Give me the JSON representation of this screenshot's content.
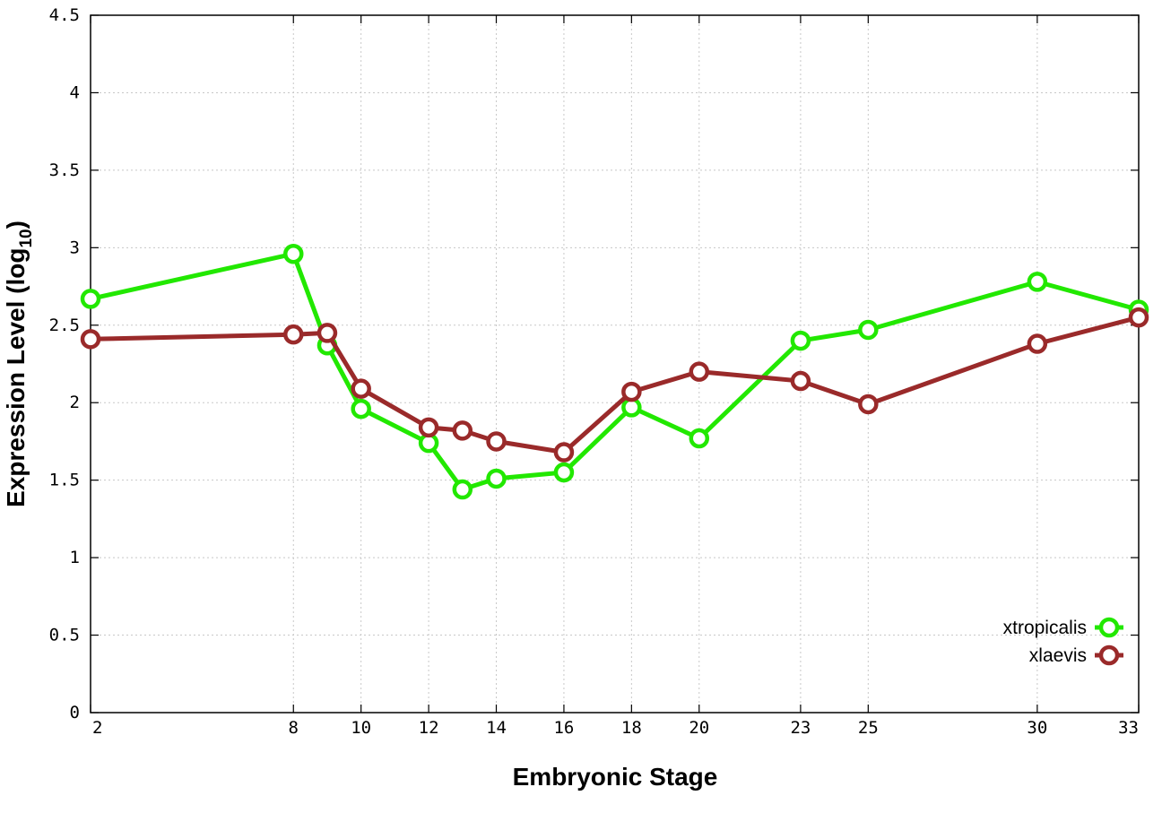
{
  "chart_data": {
    "type": "line",
    "xlabel": "Embryonic Stage",
    "ylabel_main": "Expression Level (log",
    "ylabel_sub": "10",
    "ylabel_close": ")",
    "xlim": [
      2,
      33
    ],
    "ylim": [
      0,
      4.5
    ],
    "x_ticks": [
      2,
      8,
      10,
      12,
      14,
      16,
      18,
      20,
      23,
      25,
      30,
      33
    ],
    "y_ticks": [
      0,
      0.5,
      1,
      1.5,
      2,
      2.5,
      3,
      3.5,
      4,
      4.5
    ],
    "y_tick_labels": [
      "0",
      "0.5",
      "1",
      "1.5",
      "2",
      "2.5",
      "3",
      "3.5",
      "4",
      "4.5"
    ],
    "grid": true,
    "legend_position": "bottom-right",
    "series": [
      {
        "name": "xtropicalis",
        "color": "#22e800",
        "x": [
          2,
          8,
          9,
          10,
          12,
          13,
          14,
          16,
          18,
          20,
          23,
          25,
          30,
          33
        ],
        "y": [
          2.67,
          2.96,
          2.37,
          1.96,
          1.74,
          1.44,
          1.51,
          1.55,
          1.97,
          1.77,
          2.4,
          2.47,
          2.78,
          2.6
        ]
      },
      {
        "name": "xlaevis",
        "color": "#9a2a2a",
        "x": [
          2,
          8,
          9,
          10,
          12,
          13,
          14,
          16,
          18,
          20,
          23,
          25,
          30,
          33
        ],
        "y": [
          2.41,
          2.44,
          2.45,
          2.09,
          1.84,
          1.82,
          1.75,
          1.68,
          2.07,
          2.2,
          2.14,
          1.99,
          2.38,
          2.55
        ]
      }
    ]
  }
}
